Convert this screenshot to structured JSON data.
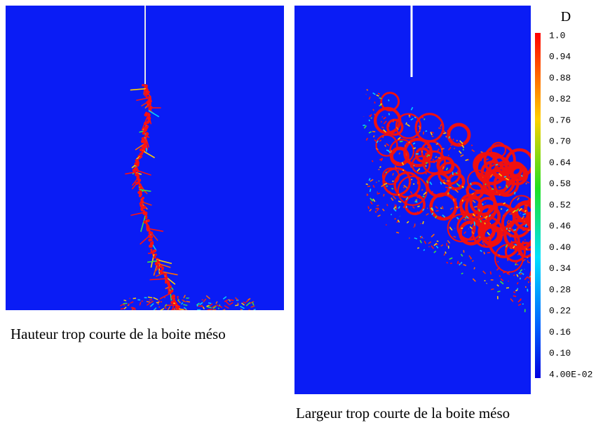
{
  "panels": [
    {
      "caption": "Hauteur trop courte de la boite méso"
    },
    {
      "caption": "Largeur trop courte de la boite méso"
    }
  ],
  "legend": {
    "title": "D",
    "labels": [
      "1.0",
      "0.94",
      "0.88",
      "0.82",
      "0.76",
      "0.70",
      "0.64",
      "0.58",
      "0.52",
      "0.46",
      "0.40",
      "0.34",
      "0.28",
      "0.22",
      "0.16",
      "0.10",
      "4.00E-02"
    ]
  }
}
